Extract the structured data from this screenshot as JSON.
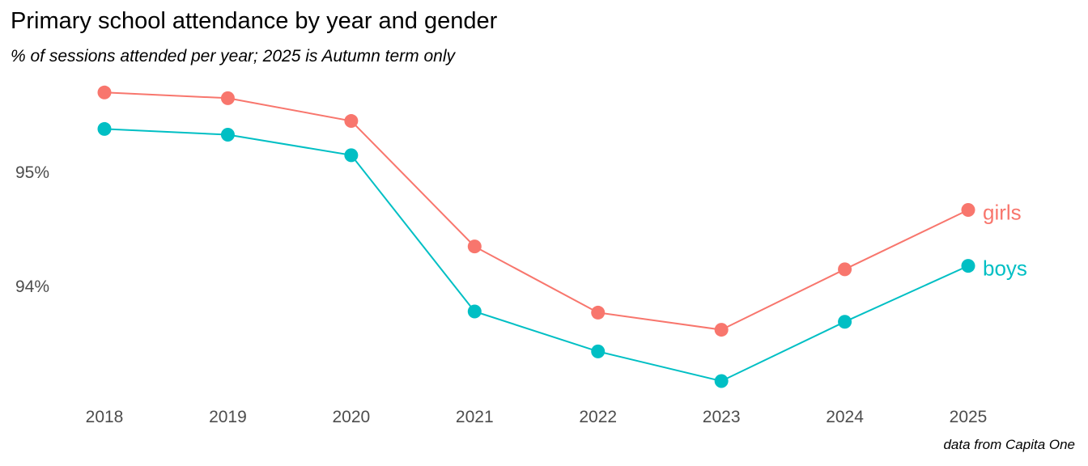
{
  "chart_data": {
    "type": "line",
    "title": "Primary school attendance by year and gender",
    "subtitle": "% of sessions attended per year; 2025 is Autumn term only",
    "caption": "data from Capita One",
    "xlabel": "",
    "ylabel": "",
    "x": [
      "2018",
      "2019",
      "2020",
      "2021",
      "2022",
      "2023",
      "2024",
      "2025"
    ],
    "ylim": [
      92.9,
      96.3
    ],
    "yticks": [
      94,
      95
    ],
    "ytick_labels": [
      "94%",
      "95%"
    ],
    "grid": false,
    "legend": "direct labels at line ends",
    "series": [
      {
        "name": "girls",
        "color": "#F8766D",
        "values": [
          95.7,
          95.65,
          95.45,
          94.35,
          93.77,
          93.62,
          94.15,
          94.67
        ]
      },
      {
        "name": "boys",
        "color": "#00BFC4",
        "values": [
          95.38,
          95.33,
          95.15,
          93.78,
          93.43,
          93.17,
          93.69,
          94.18
        ]
      }
    ]
  }
}
